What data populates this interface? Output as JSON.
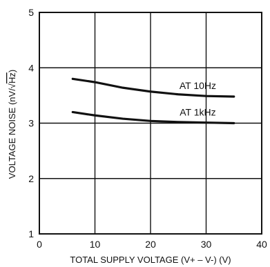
{
  "chart_data": {
    "type": "line",
    "title": "",
    "xlabel": "TOTAL SUPPLY VOLTAGE (V+ – V-) (V)",
    "ylabel_prefix": "VOLTAGE NOISE (nV/",
    "ylabel_radicand": "Hz",
    "ylabel_suffix": ")",
    "xlim": [
      0,
      40
    ],
    "ylim": [
      1,
      5
    ],
    "x_ticks": [
      0,
      10,
      20,
      30,
      40
    ],
    "y_ticks": [
      1,
      2,
      3,
      4,
      5
    ],
    "grid": true,
    "series": [
      {
        "name": "AT 10Hz",
        "x": [
          6,
          10,
          15,
          20,
          25,
          30,
          35
        ],
        "y": [
          3.8,
          3.74,
          3.64,
          3.57,
          3.52,
          3.49,
          3.48
        ]
      },
      {
        "name": "AT 1kHz",
        "x": [
          6,
          10,
          15,
          20,
          25,
          30,
          35
        ],
        "y": [
          3.2,
          3.14,
          3.08,
          3.04,
          3.02,
          3.01,
          3.0
        ]
      }
    ],
    "line_color": "#111111",
    "grid_color": "#111111"
  }
}
